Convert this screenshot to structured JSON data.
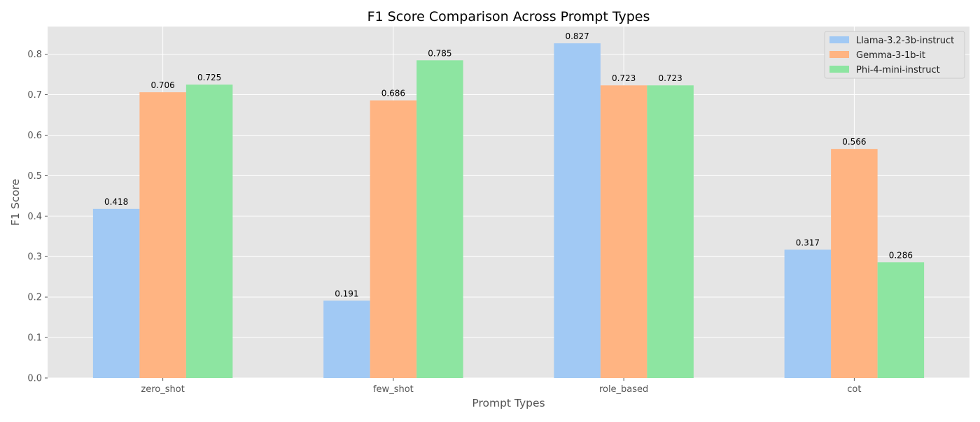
{
  "chart_data": {
    "type": "bar",
    "title": "F1 Score Comparison Across Prompt Types",
    "xlabel": "Prompt Types",
    "ylabel": "F1 Score",
    "categories": [
      "zero_shot",
      "few_shot",
      "role_based",
      "cot"
    ],
    "series": [
      {
        "name": "Llama-3.2-3b-instruct",
        "color": "#a1c9f4",
        "values": [
          0.418,
          0.191,
          0.827,
          0.317
        ]
      },
      {
        "name": "Gemma-3-1b-it",
        "color": "#ffb482",
        "values": [
          0.706,
          0.686,
          0.723,
          0.566
        ]
      },
      {
        "name": "Phi-4-mini-instruct",
        "color": "#8de5a1",
        "values": [
          0.725,
          0.785,
          0.723,
          0.286
        ]
      }
    ],
    "yticks": [
      "0.0",
      "0.1",
      "0.2",
      "0.3",
      "0.4",
      "0.5",
      "0.6",
      "0.7",
      "0.8"
    ],
    "ylim": [
      0,
      0.8684
    ],
    "grid": true,
    "legend_position": "top-right",
    "style": {
      "background": "#e5e5e5",
      "grid_color": "#ffffff",
      "text_color": "#555555",
      "title_color": "#000000"
    }
  }
}
